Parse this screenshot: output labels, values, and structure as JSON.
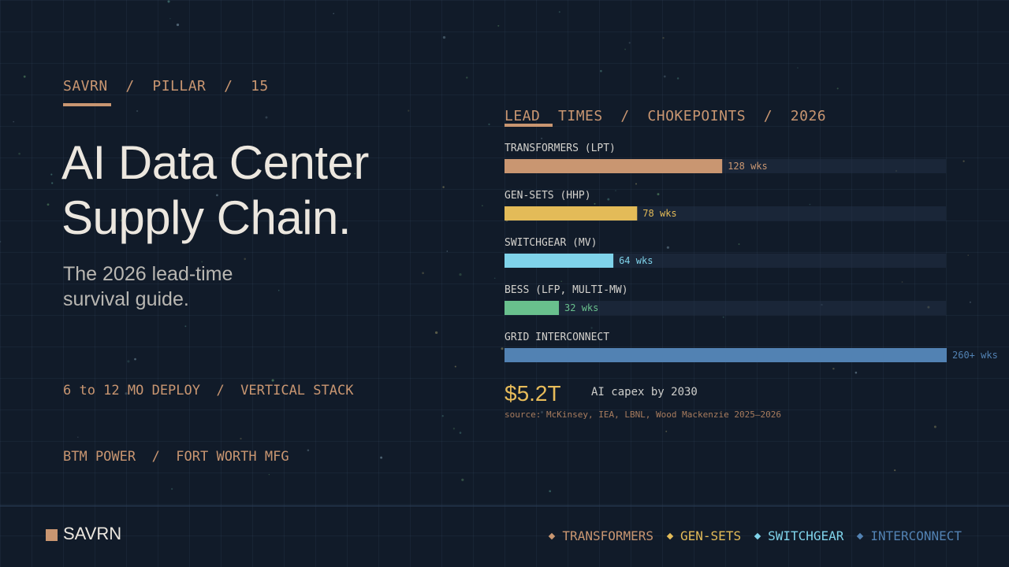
{
  "header": {
    "eyebrow": "SAVRN  /  PILLAR  /  15"
  },
  "hero": {
    "title_lines": [
      "AI Data Center",
      "Supply Chain."
    ],
    "subtitle_lines": [
      "The 2026 lead-time",
      "survival guide."
    ],
    "tagline_lines": [
      "6 to 12 MO DEPLOY  /  VERTICAL STACK",
      "BTM POWER  /  FORT WORTH MFG"
    ]
  },
  "chart_data": {
    "type": "bar",
    "orientation": "horizontal",
    "title": "LEAD  TIMES  /  CHOKEPOINTS  /  2026",
    "categories": [
      "TRANSFORMERS (LPT)",
      "GEN-SETS (HHP)",
      "SWITCHGEAR (MV)",
      "BESS (LFP, MULTI-MW)",
      "GRID INTERCONNECT"
    ],
    "values": [
      128,
      78,
      64,
      32,
      260
    ],
    "value_labels": [
      "128 wks",
      "78 wks",
      "64 wks",
      "32 wks",
      "260+ wks"
    ],
    "colors": [
      "#c99671",
      "#e3bb58",
      "#7fd3ea",
      "#69c08d",
      "#5282b3"
    ],
    "unit": "wks",
    "xlim": [
      0,
      260
    ],
    "grid": false
  },
  "stat": {
    "value": "$5.2T",
    "label": "AI capex by 2030"
  },
  "source": "source: McKinsey, IEA, LBNL, Wood Mackenzie 2025–2026",
  "footer": {
    "brand": "SAVRN",
    "legend": [
      {
        "label": "TRANSFORMERS",
        "color": "#c99671"
      },
      {
        "label": "GEN-SETS",
        "color": "#e3bb58"
      },
      {
        "label": "SWITCHGEAR",
        "color": "#7fd3ea"
      },
      {
        "label": "INTERCONNECT",
        "color": "#5282b3"
      }
    ]
  },
  "colors": {
    "background": "#111b29",
    "accent": "#c99671",
    "text": "#ece7df"
  }
}
